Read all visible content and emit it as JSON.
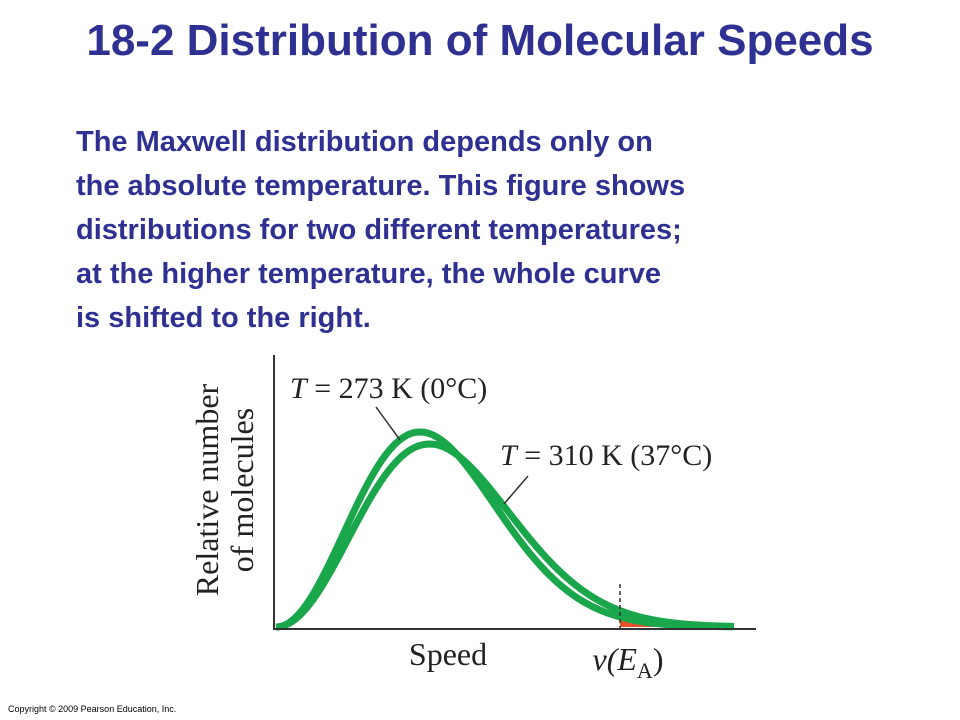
{
  "slide": {
    "title": "18-2 Distribution of Molecular Speeds",
    "body_lines": [
      "The Maxwell distribution depends only on",
      "the absolute temperature. This figure shows",
      "distributions for two different temperatures;",
      "at the higher temperature, the whole curve",
      "is shifted to the right."
    ],
    "copyright": "Copyright © 2009 Pearson Education, Inc."
  },
  "chart_data": {
    "type": "line",
    "xlabel": "Speed",
    "ylabel_lines": [
      "Relative number",
      "of molecules"
    ],
    "x_marker_label": "v(E",
    "x_marker_sub": "A",
    "x_marker_close": ")",
    "grid": false,
    "series": [
      {
        "name": "T = 273 K (0°C)",
        "T": 273,
        "color": "#1aa64b"
      },
      {
        "name": "T = 310 K (37°C)",
        "T": 310,
        "color": "#1aa64b"
      }
    ],
    "shaded_tail": {
      "region_between_curves_color": "#f6a623",
      "region_under_lower_curve_color": "#e8532a"
    },
    "labels": {
      "curve1_T": "T",
      "curve1_rest": " = 273 K (0°C)",
      "curve2_T": "T",
      "curve2_rest": " = 310 K (37°C)"
    }
  }
}
